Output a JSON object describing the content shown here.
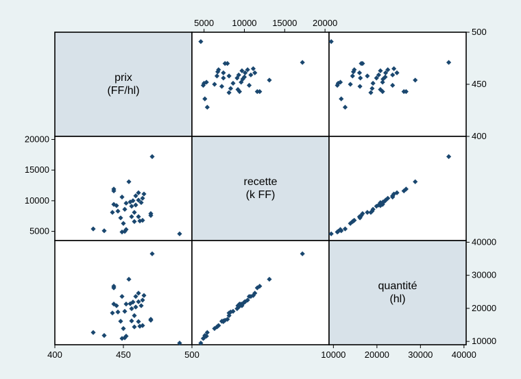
{
  "chart_data": {
    "type": "scatter",
    "variables": [
      {
        "key": "prix",
        "label_line1": "prix",
        "label_line2": "(FF/hl)",
        "range": [
          400,
          500
        ],
        "ticks": [
          400,
          450,
          500
        ]
      },
      {
        "key": "recette",
        "label_line1": "recette",
        "label_line2": "(k FF)",
        "range": [
          3500,
          20500
        ],
        "ticks": [
          5000,
          10000,
          15000,
          20000
        ]
      },
      {
        "key": "quantite",
        "label_line1": "quantité",
        "label_line2": "(hl)",
        "range": [
          9000,
          40500
        ],
        "ticks": [
          10000,
          20000,
          30000,
          40000
        ]
      }
    ],
    "points": [
      [
        491,
        4600,
        9500
      ],
      [
        428,
        5400,
        12700
      ],
      [
        436,
        5100,
        11800
      ],
      [
        449,
        4900,
        10900
      ],
      [
        451,
        5000,
        11100
      ],
      [
        452,
        5300,
        11600
      ],
      [
        450,
        6300,
        13900
      ],
      [
        458,
        6600,
        14400
      ],
      [
        462,
        6700,
        14600
      ],
      [
        464,
        6800,
        14800
      ],
      [
        448,
        7200,
        16100
      ],
      [
        456,
        7400,
        16200
      ],
      [
        461,
        7400,
        16000
      ],
      [
        470,
        7900,
        16700
      ],
      [
        470,
        7600,
        16400
      ],
      [
        442,
        8100,
        18600
      ],
      [
        446,
        8300,
        18900
      ],
      [
        451,
        8600,
        19100
      ],
      [
        458,
        8100,
        17800
      ],
      [
        456,
        9100,
        19900
      ],
      [
        445,
        9200,
        20800
      ],
      [
        443,
        9400,
        21300
      ],
      [
        459,
        9300,
        20400
      ],
      [
        452,
        9600,
        21300
      ],
      [
        455,
        9800,
        21400
      ],
      [
        457,
        10000,
        21900
      ],
      [
        463,
        9700,
        20800
      ],
      [
        449,
        10600,
        23600
      ],
      [
        461,
        10100,
        22000
      ],
      [
        464,
        10400,
        22500
      ],
      [
        459,
        10800,
        23600
      ],
      [
        461,
        11300,
        24600
      ],
      [
        465,
        11100,
        23900
      ],
      [
        443,
        11600,
        26200
      ],
      [
        443,
        11900,
        26700
      ],
      [
        454,
        13100,
        28800
      ],
      [
        471,
        17200,
        36500
      ]
    ]
  }
}
